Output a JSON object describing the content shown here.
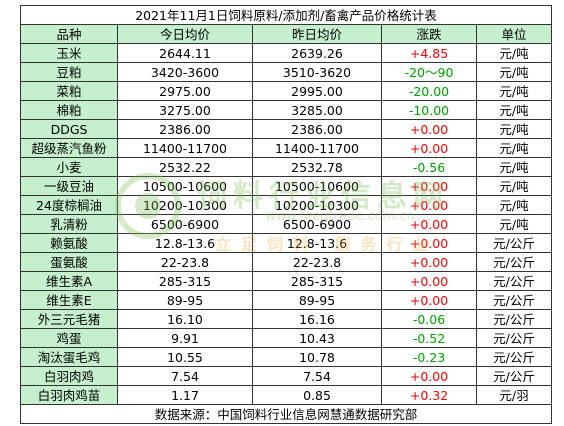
{
  "title": "2021年11月1日饲料原料/添加剂/畜禽产品价格统计表",
  "headers": [
    "品种",
    "今日均价",
    "昨日均价",
    "涨跌",
    "单位"
  ],
  "rows": [
    {
      "name": "玉米",
      "today": "2644.11",
      "yesterday": "2639.26",
      "change": "+4.85",
      "trend": "up",
      "unit": "元/吨"
    },
    {
      "name": "豆粕",
      "today": "3420-3600",
      "yesterday": "3510-3620",
      "change": "-20～90",
      "trend": "down",
      "unit": "元/吨"
    },
    {
      "name": "菜粕",
      "today": "2975.00",
      "yesterday": "2995.00",
      "change": "-20.00",
      "trend": "down",
      "unit": "元/吨"
    },
    {
      "name": "棉粕",
      "today": "3275.00",
      "yesterday": "3285.00",
      "change": "-10.00",
      "trend": "down",
      "unit": "元/吨"
    },
    {
      "name": "DDGS",
      "today": "2386.00",
      "yesterday": "2386.00",
      "change": "+0.00",
      "trend": "up",
      "unit": "元/吨"
    },
    {
      "name": "超级蒸汽鱼粉",
      "today": "11400-11700",
      "yesterday": "11400-11700",
      "change": "+0.00",
      "trend": "up",
      "unit": "元/吨"
    },
    {
      "name": "小麦",
      "today": "2532.22",
      "yesterday": "2532.78",
      "change": "-0.56",
      "trend": "down",
      "unit": "元/吨"
    },
    {
      "name": "一级豆油",
      "today": "10500-10600",
      "yesterday": "10500-10600",
      "change": "+0.00",
      "trend": "up",
      "unit": "元/吨"
    },
    {
      "name": "24度棕榈油",
      "today": "10200-10300",
      "yesterday": "10200-10300",
      "change": "+0.00",
      "trend": "up",
      "unit": "元/吨"
    },
    {
      "name": "乳清粉",
      "today": "6500-6900",
      "yesterday": "6500-6900",
      "change": "+0.00",
      "trend": "up",
      "unit": "元/吨"
    },
    {
      "name": "赖氨酸",
      "today": "12.8-13.6",
      "yesterday": "12.8-13.6",
      "change": "+0.00",
      "trend": "up",
      "unit": "元/公斤"
    },
    {
      "name": "蛋氨酸",
      "today": "22-23.8",
      "yesterday": "22-23.8",
      "change": "+0.00",
      "trend": "up",
      "unit": "元/公斤"
    },
    {
      "name": "维生素A",
      "today": "285-315",
      "yesterday": "285-315",
      "change": "+0.00",
      "trend": "up",
      "unit": "元/公斤"
    },
    {
      "name": "维生素E",
      "today": "89-95",
      "yesterday": "89-95",
      "change": "+0.00",
      "trend": "up",
      "unit": "元/公斤"
    },
    {
      "name": "外三元毛猪",
      "today": "16.10",
      "yesterday": "16.16",
      "change": "-0.06",
      "trend": "down",
      "unit": "元/公斤"
    },
    {
      "name": "鸡蛋",
      "today": "9.91",
      "yesterday": "10.43",
      "change": "-0.52",
      "trend": "down",
      "unit": "元/公斤"
    },
    {
      "name": "淘汰蛋毛鸡",
      "today": "10.55",
      "yesterday": "10.78",
      "change": "-0.23",
      "trend": "down",
      "unit": "元/公斤"
    },
    {
      "name": "白羽肉鸡",
      "today": "7.54",
      "yesterday": "7.54",
      "change": "+0.00",
      "trend": "up",
      "unit": "元/公斤"
    },
    {
      "name": "白羽肉鸡苗",
      "today": "1.17",
      "yesterday": "0.85",
      "change": "+0.32",
      "trend": "up",
      "unit": "元/羽"
    }
  ],
  "footer": "数据来源：中国饲料行业信息网慧通数据研究部",
  "watermark": {
    "name": "饲料行业信息网",
    "url": "www.feedtrade.com.cn",
    "slogan": "立足饲料 服务行业"
  },
  "colors": {
    "header_bg": "#c6efce",
    "up": "#ff0000",
    "down": "#00a000"
  }
}
